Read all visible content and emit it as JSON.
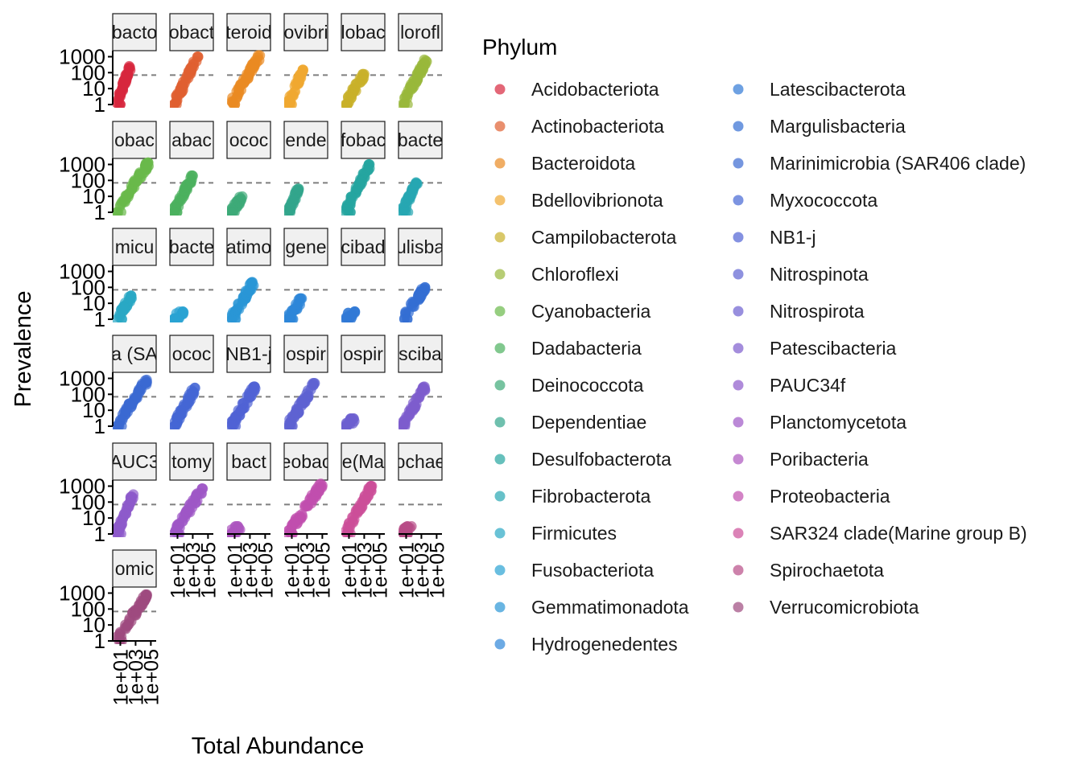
{
  "chart_data": {
    "type": "scatter",
    "facet": "Phylum",
    "xlabel": "Total Abundance",
    "ylabel": "Prevalence",
    "x_scale": "log10",
    "y_scale": "log10",
    "x_ticks": [
      "1e+01",
      "1e+03",
      "1e+05"
    ],
    "y_ticks": [
      "1",
      "10",
      "100",
      "1000"
    ],
    "x_range": [
      1,
      500000
    ],
    "y_range": [
      1,
      1500
    ],
    "reference_line_y": 70,
    "legend_title": "Phylum",
    "legend_placement": "right",
    "panels": [
      {
        "strip": "bacto",
        "phylum": "Acidobacteriota",
        "color": "#d7263d",
        "x_range": [
          3,
          200
        ],
        "y_range": [
          1,
          250
        ]
      },
      {
        "strip": "obact",
        "phylum": "Actinobacteriota",
        "color": "#e06030",
        "x_range": [
          3,
          5000
        ],
        "y_range": [
          1,
          1000
        ]
      },
      {
        "strip": "teroid",
        "phylum": "Bacteroidota",
        "color": "#e98a22",
        "x_range": [
          3,
          20000
        ],
        "y_range": [
          1,
          1200
        ]
      },
      {
        "strip": "ovibri",
        "phylum": "Bdellovibrionota",
        "color": "#f0a830",
        "x_range": [
          3,
          300
        ],
        "y_range": [
          1,
          150
        ]
      },
      {
        "strip": "lobac",
        "phylum": "Campilobacterota",
        "color": "#c9b02a",
        "x_range": [
          3,
          1000
        ],
        "y_range": [
          1,
          80
        ]
      },
      {
        "strip": "lorofl",
        "phylum": "Chloroflexi",
        "color": "#98b83a",
        "x_range": [
          3,
          5000
        ],
        "y_range": [
          1,
          700
        ]
      },
      {
        "strip": "obac",
        "phylum": "Cyanobacteria",
        "color": "#6ab94a",
        "x_range": [
          3,
          50000
        ],
        "y_range": [
          1,
          1300
        ]
      },
      {
        "strip": "abac",
        "phylum": "Dadabacteria",
        "color": "#4cb05e",
        "x_range": [
          3,
          1000
        ],
        "y_range": [
          1,
          200
        ]
      },
      {
        "strip": "ococ",
        "phylum": "Deinococcota",
        "color": "#3daa78",
        "x_range": [
          3,
          100
        ],
        "y_range": [
          1,
          10
        ]
      },
      {
        "strip": "ende",
        "phylum": "Dependentiae",
        "color": "#32a58c",
        "x_range": [
          3,
          80
        ],
        "y_range": [
          1,
          30
        ]
      },
      {
        "strip": "fobac",
        "phylum": "Desulfobacterota",
        "color": "#25a59f",
        "x_range": [
          3,
          5000
        ],
        "y_range": [
          1,
          1000
        ]
      },
      {
        "strip": "bacte",
        "phylum": "Fibrobacterota",
        "color": "#27a7b2",
        "x_range": [
          3,
          300
        ],
        "y_range": [
          1,
          100
        ]
      },
      {
        "strip": "micu",
        "phylum": "Firmicutes",
        "color": "#29a8c4",
        "x_range": [
          3,
          300
        ],
        "y_range": [
          1,
          30
        ]
      },
      {
        "strip": "bacte",
        "phylum": "Fusobacteriota",
        "color": "#2aa3d3",
        "x_range": [
          3,
          60
        ],
        "y_range": [
          1,
          3
        ]
      },
      {
        "strip": "atimo",
        "phylum": "Gemmatimonadota",
        "color": "#2a95d6",
        "x_range": [
          3,
          3000
        ],
        "y_range": [
          1,
          220
        ]
      },
      {
        "strip": "gene",
        "phylum": "Hydrogenedentes",
        "color": "#2d86d8",
        "x_range": [
          3,
          200
        ],
        "y_range": [
          1,
          20
        ]
      },
      {
        "strip": "cibad",
        "phylum": "Latescibacterota",
        "color": "#3079d6",
        "x_range": [
          3,
          60
        ],
        "y_range": [
          1,
          3
        ]
      },
      {
        "strip": "ulisba",
        "phylum": "Margulisbacteria",
        "color": "#336ed3",
        "x_range": [
          3,
          3000
        ],
        "y_range": [
          1,
          100
        ]
      },
      {
        "strip": "a (SA",
        "phylum": "Marinimicrobia (SAR406 clade)",
        "color": "#3b69d2",
        "x_range": [
          3,
          30000
        ],
        "y_range": [
          1,
          800
        ]
      },
      {
        "strip": "ococ",
        "phylum": "Myxococcota",
        "color": "#4466d4",
        "x_range": [
          3,
          2000
        ],
        "y_range": [
          1,
          250
        ]
      },
      {
        "strip": "NB1-j",
        "phylum": "NB1-j",
        "color": "#5063d4",
        "x_range": [
          3,
          5000
        ],
        "y_range": [
          1,
          300
        ]
      },
      {
        "strip": "ospir",
        "phylum": "Nitrospinota",
        "color": "#5e62d1",
        "x_range": [
          3,
          10000
        ],
        "y_range": [
          1,
          500
        ]
      },
      {
        "strip": "ospir",
        "phylum": "Nitrospirota",
        "color": "#6c60d0",
        "x_range": [
          3,
          50
        ],
        "y_range": [
          1,
          3
        ]
      },
      {
        "strip": "sciba",
        "phylum": "Patescibacteria",
        "color": "#7d5ccd",
        "x_range": [
          3,
          3000
        ],
        "y_range": [
          1,
          300
        ]
      },
      {
        "strip": "AUC3",
        "phylum": "PAUC34f",
        "color": "#8d5acb",
        "x_range": [
          3,
          500
        ],
        "y_range": [
          1,
          300
        ]
      },
      {
        "strip": "tomy",
        "phylum": "Planctomycetota",
        "color": "#9e57c6",
        "x_range": [
          3,
          20000
        ],
        "y_range": [
          1,
          700
        ]
      },
      {
        "strip": "bact",
        "phylum": "Poribacteria",
        "color": "#ad55bf",
        "x_range": [
          3,
          50
        ],
        "y_range": [
          1,
          3
        ]
      },
      {
        "strip": "eobac",
        "phylum": "Proteobacteria",
        "color": "#c04fae",
        "x_range": [
          3,
          100000
        ],
        "y_range": [
          1,
          1400
        ]
      },
      {
        "strip": "e(Ma",
        "phylum": "SAR324 clade(Marine group B)",
        "color": "#cc4e99",
        "x_range": [
          3,
          10000
        ],
        "y_range": [
          1,
          1000
        ]
      },
      {
        "strip": "ochae",
        "phylum": "Spirochaetota",
        "color": "#b84d88",
        "x_range": [
          3,
          50
        ],
        "y_range": [
          1,
          3
        ]
      },
      {
        "strip": "omic",
        "phylum": "Verrucomicrobiota",
        "color": "#9e4a7f",
        "x_range": [
          3,
          30000
        ],
        "y_range": [
          1,
          800
        ]
      }
    ]
  }
}
